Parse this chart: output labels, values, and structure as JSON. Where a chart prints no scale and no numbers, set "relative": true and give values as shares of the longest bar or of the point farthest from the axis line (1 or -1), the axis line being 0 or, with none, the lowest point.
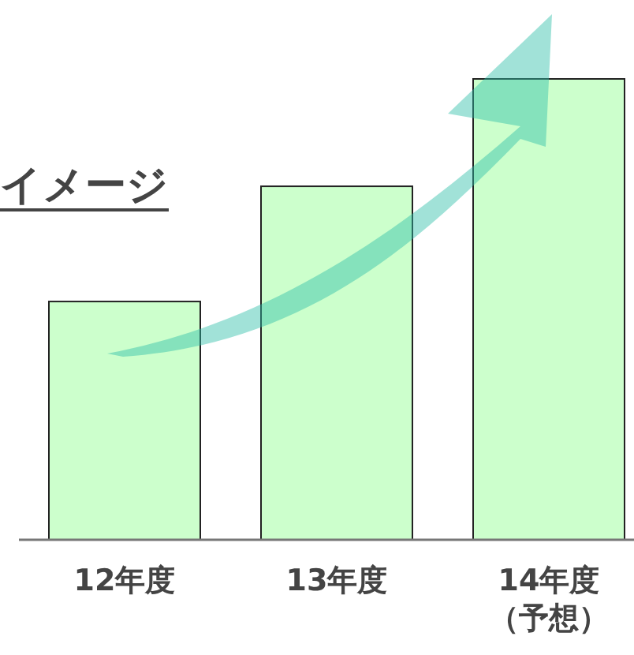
{
  "chart_data": {
    "type": "bar",
    "title": "イメージ",
    "relative": true,
    "categories": [
      "12年度",
      "13年度",
      "14年度（予想）"
    ],
    "values": [
      0.517,
      0.767,
      1
    ],
    "color": "#ccffcc"
  }
}
